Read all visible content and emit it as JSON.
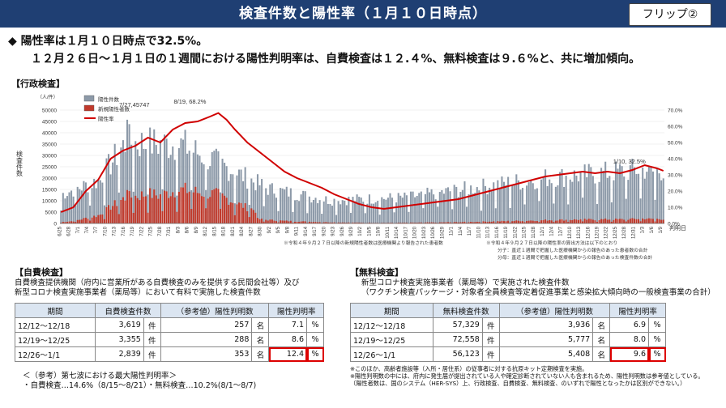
{
  "header": {
    "title": "検査件数と陽性率（１月１０日時点）",
    "flip": "フリップ②"
  },
  "summary": {
    "line1": "◆ 陽性率は１月１０日時点で32.5%。",
    "line2": "１２月２６日～１月１日の１週間における陽性判明率は、自費検査は１２.４%、無料検査は９.６%と、共に増加傾向。"
  },
  "sections": {
    "admin": "【行政検査】",
    "self": "【自費検査】",
    "free": "【無料検査】"
  },
  "chart_data": {
    "type": "bar+line",
    "y_left_unit": "（人/件）",
    "ylabel": "検査件数",
    "xlabel": "判明日",
    "y_left_ticks": [
      "0",
      "5000",
      "10000",
      "15000",
      "20000",
      "25000",
      "30000",
      "35000",
      "40000",
      "45000",
      "50000"
    ],
    "y_right_ticks": [
      "0.0%",
      "10.0%",
      "20.0%",
      "30.0%",
      "40.0%",
      "50.0%",
      "60.0%",
      "70.0%"
    ],
    "ylim_left": [
      0,
      50000
    ],
    "ylim_right": [
      0,
      70
    ],
    "legend": [
      "陽性件数",
      "新規陽性者数",
      "陽性率"
    ],
    "x_ticks": [
      "6/25",
      "6/28",
      "7/1",
      "7/4",
      "7/7",
      "7/10",
      "7/13",
      "7/16",
      "7/19",
      "7/22",
      "7/25",
      "7/28",
      "7/31",
      "8/3",
      "8/6",
      "8/9",
      "8/12",
      "8/15",
      "8/18",
      "8/21",
      "8/24",
      "8/27",
      "8/30",
      "9/2",
      "9/5",
      "9/8",
      "9/11",
      "9/14",
      "9/17",
      "9/20",
      "9/23",
      "9/26",
      "9/29",
      "10/2",
      "10/5",
      "10/8",
      "10/11",
      "10/14",
      "10/17",
      "10/20",
      "10/23",
      "10/26",
      "10/29",
      "11/1",
      "11/4",
      "11/7",
      "11/10",
      "11/13",
      "11/16",
      "11/19",
      "11/22",
      "11/25",
      "11/28",
      "12/1",
      "12/4",
      "12/7",
      "12/10",
      "12/13",
      "12/16",
      "12/19",
      "12/22",
      "12/25",
      "12/28",
      "12/31",
      "1/3",
      "1/6",
      "1/9"
    ],
    "annotations": [
      "7/27,45747",
      "8/19, 68.2%",
      "1/10, 32.5%"
    ],
    "notes": {
      "left": "※令和４年９月２７日以降の新規陽性者数は医療機関より報告された患者数",
      "right1": "※令和４年９月２７日以降の陽性率の算出方法は以下のとおり",
      "right2": "分子：直近１週間で把握した医療機関からの報告のあった患者数の合計",
      "right3": "分母：直近１週間で把握した医療機関からの報告のあった検査件数の合計"
    },
    "series": [
      {
        "name": "陽性率",
        "points": [
          [
            0,
            7
          ],
          [
            6,
            10
          ],
          [
            12,
            20
          ],
          [
            18,
            27
          ],
          [
            24,
            40
          ],
          [
            30,
            45
          ],
          [
            36,
            48
          ],
          [
            42,
            53
          ],
          [
            48,
            50
          ],
          [
            54,
            58
          ],
          [
            60,
            62
          ],
          [
            66,
            63
          ],
          [
            72,
            66
          ],
          [
            76,
            68.2
          ],
          [
            80,
            64
          ],
          [
            84,
            58
          ],
          [
            90,
            50
          ],
          [
            96,
            44
          ],
          [
            102,
            38
          ],
          [
            108,
            32
          ],
          [
            114,
            28
          ],
          [
            120,
            25
          ],
          [
            126,
            22
          ],
          [
            132,
            18
          ],
          [
            138,
            15
          ],
          [
            144,
            12
          ],
          [
            150,
            10
          ],
          [
            156,
            9
          ],
          [
            162,
            10
          ],
          [
            168,
            11
          ],
          [
            174,
            12
          ],
          [
            180,
            13
          ],
          [
            186,
            14
          ],
          [
            192,
            15
          ],
          [
            198,
            17
          ],
          [
            204,
            19
          ],
          [
            210,
            21
          ],
          [
            216,
            23
          ],
          [
            222,
            25
          ],
          [
            228,
            27
          ],
          [
            234,
            29
          ],
          [
            240,
            30
          ],
          [
            246,
            31
          ],
          [
            252,
            32
          ],
          [
            258,
            31
          ],
          [
            264,
            32
          ],
          [
            270,
            31
          ],
          [
            276,
            33
          ],
          [
            282,
            36
          ],
          [
            288,
            34
          ],
          [
            291,
            32.5
          ]
        ]
      }
    ]
  },
  "self_test": {
    "desc1": "自費検査提供機関（府内に営業所がある自費検査のみを提供する民間会社等）及び",
    "desc2": "新型コロナ検査実施事業者（薬局等）において有料で実施した検査件数",
    "headers": [
      "期間",
      "自費検査件数",
      "（参考値）陽性判明数",
      "陽性判明率"
    ],
    "rows": [
      {
        "period": "12/12～12/18",
        "count": "3,619",
        "unit1": "件",
        "pos": "257",
        "unit2": "名",
        "rate": "7.1",
        "unit3": "%"
      },
      {
        "period": "12/19～12/25",
        "count": "3,355",
        "unit1": "件",
        "pos": "288",
        "unit2": "名",
        "rate": "8.6",
        "unit3": "%"
      },
      {
        "period": "12/26～1/1",
        "count": "2,839",
        "unit1": "件",
        "pos": "353",
        "unit2": "名",
        "rate": "12.4",
        "unit3": "%"
      }
    ],
    "ref_title": "＜（参考）第七波における最大陽性判明率＞",
    "ref_line": "・自費検査…14.6%（8/15～8/21）・無料検査…10.2%(8/1～8/7)"
  },
  "free_test": {
    "desc1": "新型コロナ検査実施事業者（薬局等）で実施された検査件数",
    "desc2": "（ワクチン検査パッケージ・対象者全員検査等定着促進事業と感染拡大傾向時の一般検査事業の合計）",
    "headers": [
      "期間",
      "無料検査件数",
      "（参考値）陽性判明数",
      "陽性判明率"
    ],
    "rows": [
      {
        "period": "12/12～12/18",
        "count": "57,329",
        "unit1": "件",
        "pos": "3,936",
        "unit2": "名",
        "rate": "6.9",
        "unit3": "%"
      },
      {
        "period": "12/19～12/25",
        "count": "72,558",
        "unit1": "件",
        "pos": "5,777",
        "unit2": "名",
        "rate": "8.0",
        "unit3": "%"
      },
      {
        "period": "12/26～1/1",
        "count": "56,123",
        "unit1": "件",
        "pos": "5,408",
        "unit2": "名",
        "rate": "9.6",
        "unit3": "%"
      }
    ],
    "note1": "※このほか、高齢者施設等（入所・居住系）の従事者に対する抗原キット定期検査を実施。",
    "note2": "※陽性判明数の中には、府内に発生届が提出されている人や確定診断されていない人も含まれるため、陽性判明数は参考値としている。",
    "note3": "（陽性者数は、国のシステム（HER-SYS）上、行政検査、自費検査、無料検査、のいずれで陽性となったかは区別ができない。）"
  },
  "colors": {
    "header_bg": "#1f3f73",
    "bar_total": "#8c99a8",
    "bar_pos": "#c0392b",
    "rate_line": "#d00000"
  }
}
